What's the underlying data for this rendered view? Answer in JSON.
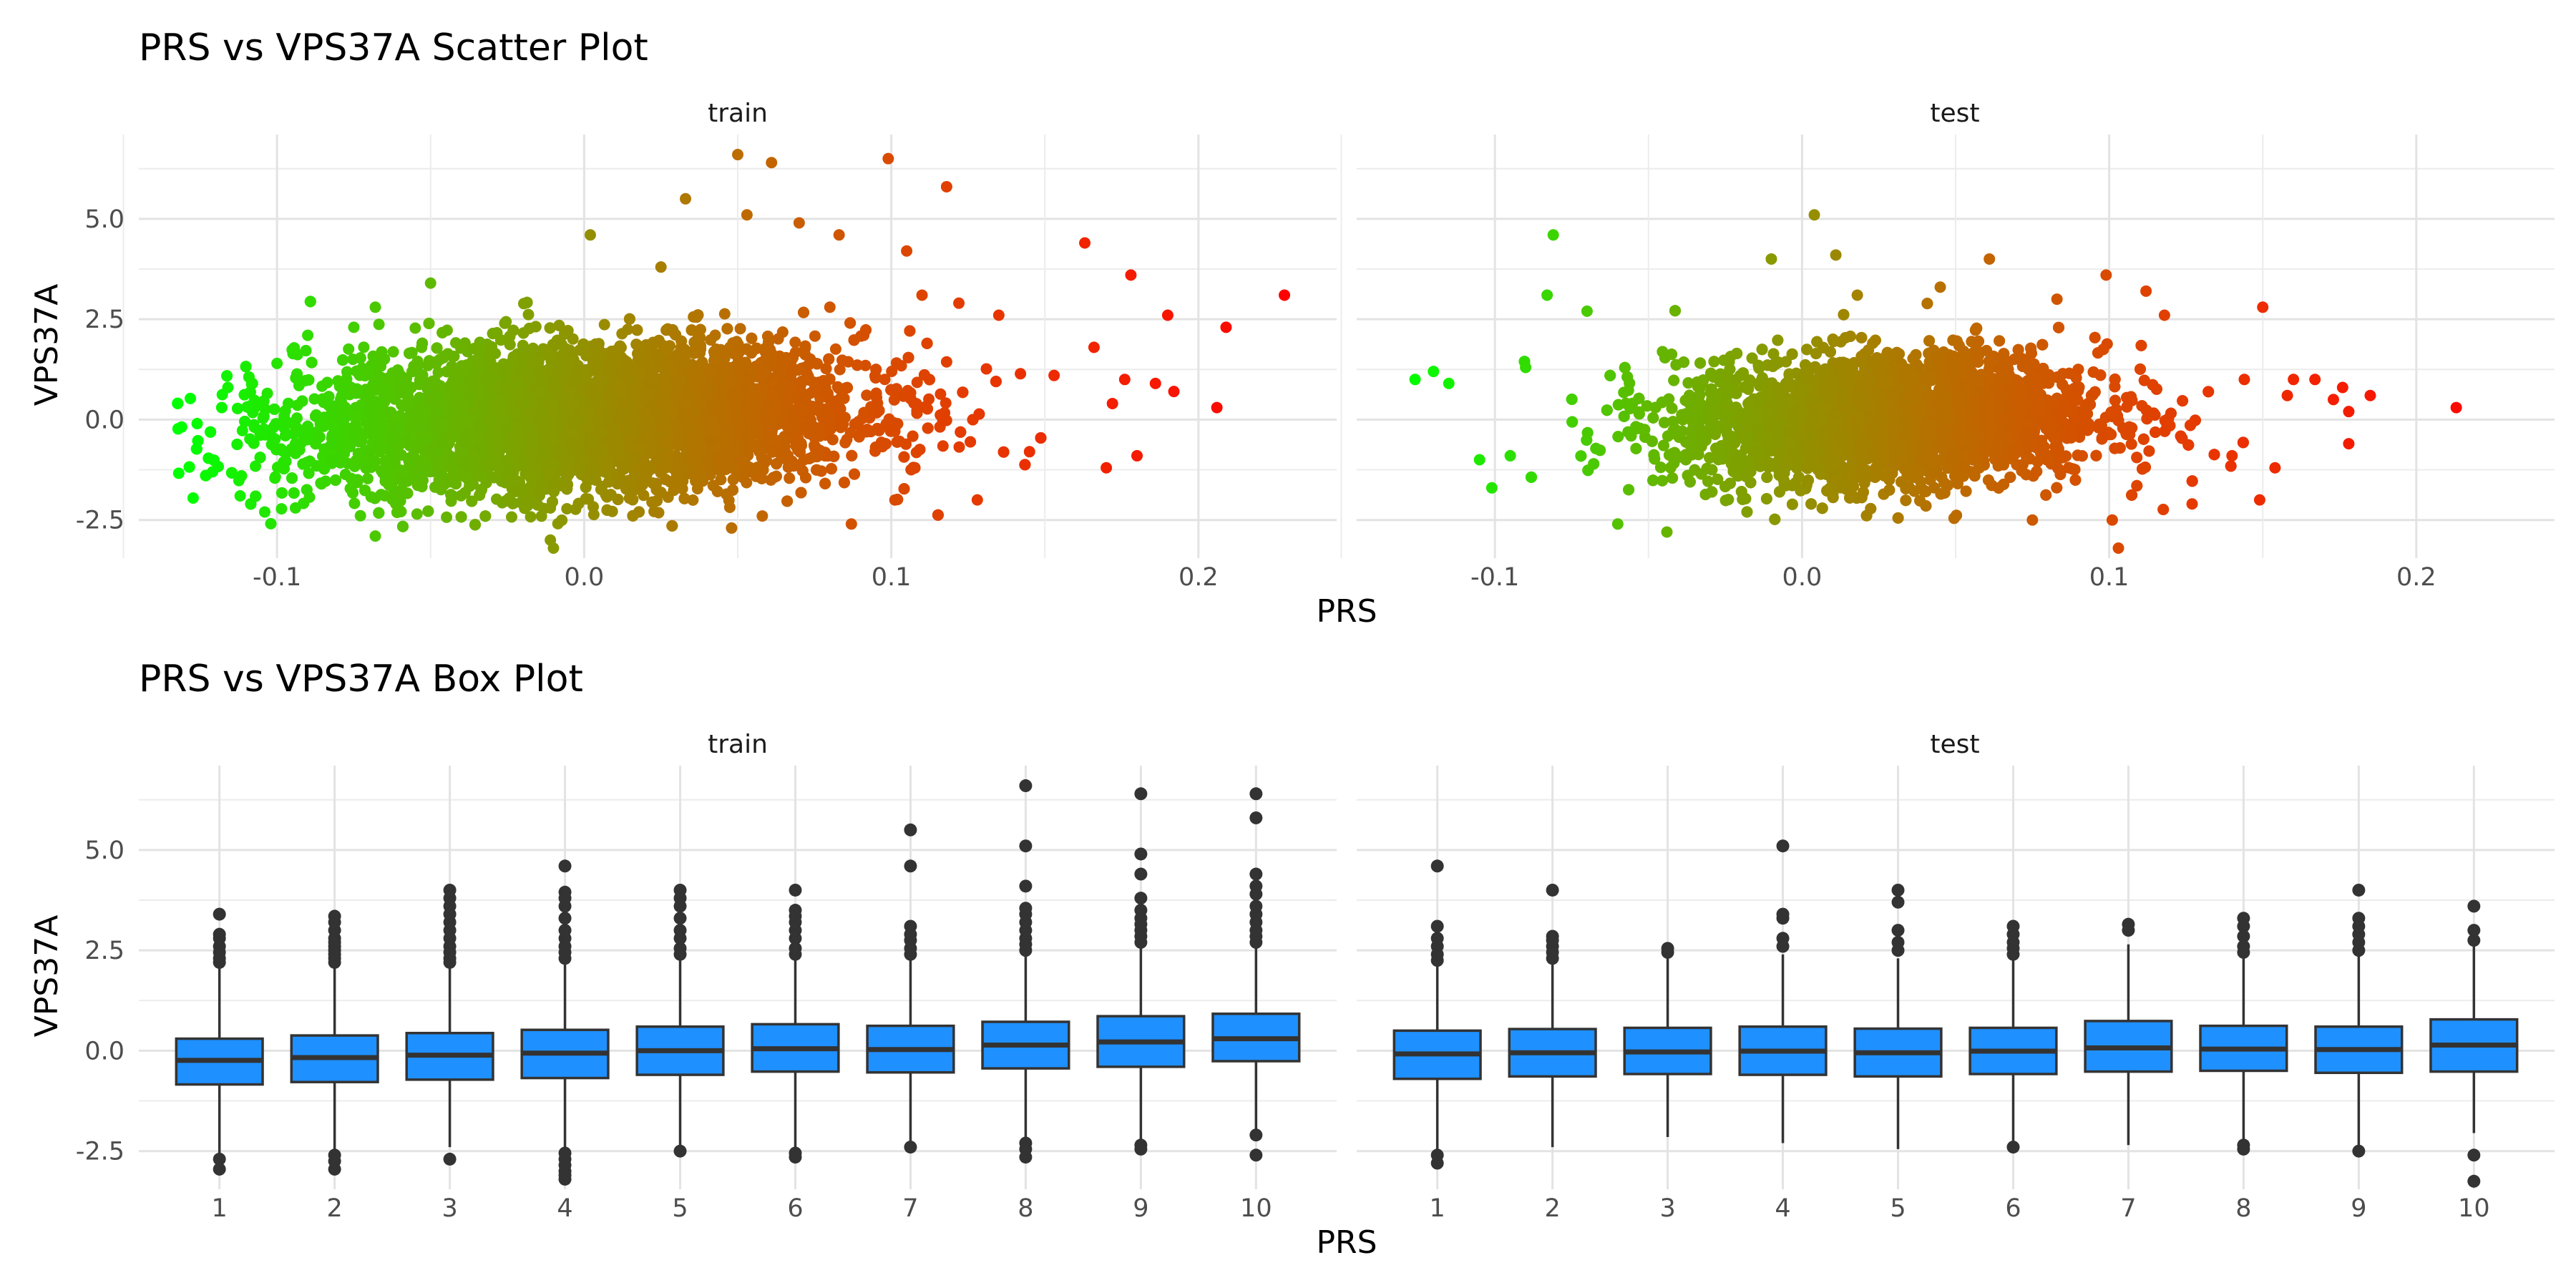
{
  "chart_data": [
    {
      "type": "scatter",
      "title": "PRS vs VPS37A Scatter Plot",
      "xlabel": "PRS",
      "ylabel": "VPS37A",
      "xlim": [
        -0.145,
        0.245
      ],
      "ylim": [
        -3.45,
        7.1
      ],
      "x_ticks": [
        -0.1,
        0.0,
        0.1,
        0.2
      ],
      "x_tick_labels": [
        "-0.1",
        "0.0",
        "0.1",
        "0.2"
      ],
      "y_ticks": [
        -2.5,
        0.0,
        2.5,
        5.0
      ],
      "y_tick_labels": [
        "-2.5",
        "0.0",
        "2.5",
        "5.0"
      ],
      "grid": true,
      "color_scale": {
        "low": "#00ff00",
        "high": "#ff0000",
        "variable": "PRS",
        "range": [
          -0.13,
          0.23
        ]
      },
      "panels": [
        {
          "name": "train",
          "cloud": {
            "x_mean": 0.0,
            "x_sd": 0.045,
            "y_mean": 0.0,
            "y_sd": 0.9,
            "slope": 3.0
          },
          "points": [
            [
              -0.126,
              -0.1
            ],
            [
              -0.121,
              -1.3
            ],
            [
              -0.118,
              0.3
            ],
            [
              -0.116,
              0.8
            ],
            [
              -0.112,
              -1.9
            ],
            [
              -0.108,
              0.9
            ],
            [
              -0.104,
              -2.3
            ],
            [
              -0.1,
              1.4
            ],
            [
              -0.094,
              -2.2
            ],
            [
              -0.09,
              2.1
            ],
            [
              -0.075,
              2.3
            ],
            [
              -0.068,
              2.8
            ],
            [
              -0.068,
              -2.9
            ],
            [
              -0.05,
              3.4
            ],
            [
              -0.011,
              -3.0
            ],
            [
              -0.01,
              -3.2
            ],
            [
              0.002,
              4.6
            ],
            [
              0.025,
              3.8
            ],
            [
              0.033,
              5.5
            ],
            [
              0.048,
              -2.7
            ],
            [
              0.05,
              6.6
            ],
            [
              0.053,
              5.1
            ],
            [
              0.058,
              -2.4
            ],
            [
              0.061,
              6.4
            ],
            [
              0.07,
              4.9
            ],
            [
              0.08,
              2.8
            ],
            [
              0.083,
              4.6
            ],
            [
              0.087,
              -2.6
            ],
            [
              0.099,
              6.5
            ],
            [
              0.105,
              4.2
            ],
            [
              0.11,
              3.1
            ],
            [
              0.118,
              5.8
            ],
            [
              0.122,
              2.9
            ],
            [
              0.128,
              -2.0
            ],
            [
              0.135,
              2.6
            ],
            [
              0.145,
              -0.8
            ],
            [
              0.153,
              1.1
            ],
            [
              0.163,
              4.4
            ],
            [
              0.166,
              1.8
            ],
            [
              0.17,
              -1.2
            ],
            [
              0.172,
              0.4
            ],
            [
              0.176,
              1.0
            ],
            [
              0.178,
              3.6
            ],
            [
              0.18,
              -0.9
            ],
            [
              0.186,
              0.9
            ],
            [
              0.19,
              2.6
            ],
            [
              0.192,
              0.7
            ],
            [
              0.206,
              0.3
            ],
            [
              0.209,
              2.3
            ],
            [
              0.228,
              3.1
            ]
          ]
        },
        {
          "name": "test",
          "cloud": {
            "x_mean": 0.028,
            "x_sd": 0.035,
            "y_mean": 0.0,
            "y_sd": 0.8,
            "slope": 2.0
          },
          "points": [
            [
              -0.126,
              1.0
            ],
            [
              -0.12,
              1.2
            ],
            [
              -0.115,
              0.9
            ],
            [
              -0.105,
              -1.0
            ],
            [
              -0.101,
              -1.7
            ],
            [
              -0.095,
              -0.9
            ],
            [
              -0.09,
              1.3
            ],
            [
              -0.081,
              4.6
            ],
            [
              -0.083,
              3.1
            ],
            [
              -0.07,
              2.7
            ],
            [
              -0.06,
              -2.6
            ],
            [
              -0.044,
              -2.8
            ],
            [
              -0.01,
              4.0
            ],
            [
              0.004,
              5.1
            ],
            [
              0.011,
              4.1
            ],
            [
              0.018,
              3.1
            ],
            [
              0.045,
              3.3
            ],
            [
              0.061,
              4.0
            ],
            [
              0.075,
              -2.5
            ],
            [
              0.083,
              3.0
            ],
            [
              0.099,
              3.6
            ],
            [
              0.101,
              -2.5
            ],
            [
              0.103,
              -3.2
            ],
            [
              0.112,
              3.2
            ],
            [
              0.118,
              2.6
            ],
            [
              0.127,
              -2.1
            ],
            [
              0.14,
              -0.9
            ],
            [
              0.144,
              1.0
            ],
            [
              0.149,
              -2.0
            ],
            [
              0.15,
              2.8
            ],
            [
              0.154,
              -1.2
            ],
            [
              0.158,
              0.6
            ],
            [
              0.16,
              1.0
            ],
            [
              0.167,
              1.0
            ],
            [
              0.173,
              0.5
            ],
            [
              0.176,
              0.8
            ],
            [
              0.178,
              -0.6
            ],
            [
              0.178,
              0.2
            ],
            [
              0.185,
              0.6
            ],
            [
              0.213,
              0.3
            ]
          ]
        }
      ]
    },
    {
      "type": "box",
      "title": "PRS vs VPS37A Box Plot",
      "xlabel": "PRS",
      "ylabel": "VPS37A",
      "ylim": [
        -3.45,
        7.1
      ],
      "y_ticks": [
        -2.5,
        0.0,
        2.5,
        5.0
      ],
      "y_tick_labels": [
        "-2.5",
        "0.0",
        "2.5",
        "5.0"
      ],
      "categories": [
        "1",
        "2",
        "3",
        "4",
        "5",
        "6",
        "7",
        "8",
        "9",
        "10"
      ],
      "grid": true,
      "fill_color": "#1f90ff",
      "panels": [
        {
          "name": "train",
          "boxes": [
            {
              "category": "1",
              "q1": -0.84,
              "median": -0.24,
              "q3": 0.3,
              "whisker_low": -2.55,
              "whisker_high": 2.05,
              "outliers": [
                -2.7,
                -2.95,
                2.2,
                2.3,
                2.45,
                2.6,
                2.8,
                2.9,
                3.4
              ]
            },
            {
              "category": "2",
              "q1": -0.78,
              "median": -0.17,
              "q3": 0.38,
              "whisker_low": -2.5,
              "whisker_high": 2.1,
              "outliers": [
                -2.6,
                -2.75,
                -2.95,
                2.2,
                2.3,
                2.4,
                2.5,
                2.6,
                2.7,
                2.8,
                3.0,
                3.2,
                3.35
              ]
            },
            {
              "category": "3",
              "q1": -0.72,
              "median": -0.11,
              "q3": 0.44,
              "whisker_low": -2.4,
              "whisker_high": 2.1,
              "outliers": [
                -2.7,
                2.2,
                2.3,
                2.45,
                2.6,
                2.8,
                3.0,
                3.2,
                3.4,
                3.6,
                3.8,
                4.0
              ]
            },
            {
              "category": "4",
              "q1": -0.68,
              "median": -0.06,
              "q3": 0.52,
              "whisker_low": -2.4,
              "whisker_high": 2.2,
              "outliers": [
                -2.55,
                -2.7,
                -2.85,
                -3.0,
                -3.1,
                -3.2,
                2.3,
                2.45,
                2.6,
                2.8,
                3.0,
                3.3,
                3.6,
                3.8,
                3.95,
                4.6
              ]
            },
            {
              "category": "5",
              "q1": -0.6,
              "median": 0.0,
              "q3": 0.6,
              "whisker_low": -2.4,
              "whisker_high": 2.3,
              "outliers": [
                -2.5,
                2.4,
                2.55,
                2.8,
                3.0,
                3.3,
                3.6,
                3.8,
                4.0
              ]
            },
            {
              "category": "6",
              "q1": -0.52,
              "median": 0.05,
              "q3": 0.66,
              "whisker_low": -2.4,
              "whisker_high": 2.3,
              "outliers": [
                -2.55,
                -2.65,
                2.4,
                2.55,
                2.8,
                3.0,
                3.2,
                3.35,
                3.5,
                4.0
              ]
            },
            {
              "category": "7",
              "q1": -0.54,
              "median": 0.03,
              "q3": 0.62,
              "whisker_low": -2.3,
              "whisker_high": 2.3,
              "outliers": [
                -2.4,
                2.4,
                2.55,
                2.75,
                2.9,
                3.1,
                4.6,
                5.5
              ]
            },
            {
              "category": "8",
              "q1": -0.44,
              "median": 0.14,
              "q3": 0.72,
              "whisker_low": -2.2,
              "whisker_high": 2.4,
              "outliers": [
                -2.3,
                -2.45,
                -2.65,
                2.5,
                2.65,
                2.8,
                3.0,
                3.2,
                3.4,
                3.55,
                4.1,
                5.1,
                6.6
              ]
            },
            {
              "category": "9",
              "q1": -0.4,
              "median": 0.22,
              "q3": 0.86,
              "whisker_low": -2.25,
              "whisker_high": 2.6,
              "outliers": [
                -2.35,
                -2.45,
                2.7,
                2.85,
                3.0,
                3.15,
                3.3,
                3.5,
                3.8,
                4.4,
                4.9,
                6.4
              ]
            },
            {
              "category": "10",
              "q1": -0.26,
              "median": 0.3,
              "q3": 0.92,
              "whisker_low": -2.0,
              "whisker_high": 2.6,
              "outliers": [
                -2.1,
                -2.6,
                2.7,
                2.85,
                3.0,
                3.2,
                3.4,
                3.6,
                3.9,
                4.1,
                4.4,
                5.8,
                6.4
              ]
            }
          ]
        },
        {
          "name": "test",
          "boxes": [
            {
              "category": "1",
              "q1": -0.7,
              "median": -0.08,
              "q3": 0.5,
              "whisker_low": -2.45,
              "whisker_high": 2.1,
              "outliers": [
                -2.6,
                -2.8,
                2.25,
                2.4,
                2.6,
                2.8,
                3.1,
                4.6
              ]
            },
            {
              "category": "2",
              "q1": -0.64,
              "median": -0.05,
              "q3": 0.54,
              "whisker_low": -2.4,
              "whisker_high": 2.2,
              "outliers": [
                2.3,
                2.45,
                2.6,
                2.75,
                2.85,
                4.0
              ]
            },
            {
              "category": "3",
              "q1": -0.58,
              "median": -0.03,
              "q3": 0.57,
              "whisker_low": -2.15,
              "whisker_high": 2.35,
              "outliers": [
                2.45,
                2.55
              ]
            },
            {
              "category": "4",
              "q1": -0.6,
              "median": -0.01,
              "q3": 0.6,
              "whisker_low": -2.3,
              "whisker_high": 2.4,
              "outliers": [
                2.6,
                2.8,
                3.3,
                3.4,
                5.1
              ]
            },
            {
              "category": "5",
              "q1": -0.64,
              "median": -0.05,
              "q3": 0.55,
              "whisker_low": -2.45,
              "whisker_high": 2.3,
              "outliers": [
                2.5,
                2.7,
                3.0,
                3.7,
                4.0
              ]
            },
            {
              "category": "6",
              "q1": -0.58,
              "median": -0.01,
              "q3": 0.57,
              "whisker_low": -2.3,
              "whisker_high": 2.25,
              "outliers": [
                -2.4,
                2.4,
                2.55,
                2.7,
                2.9,
                3.1
              ]
            },
            {
              "category": "7",
              "q1": -0.52,
              "median": 0.07,
              "q3": 0.74,
              "whisker_low": -2.35,
              "whisker_high": 2.65,
              "outliers": [
                3.0,
                3.15
              ]
            },
            {
              "category": "8",
              "q1": -0.5,
              "median": 0.04,
              "q3": 0.62,
              "whisker_low": -2.25,
              "whisker_high": 2.3,
              "outliers": [
                -2.35,
                -2.45,
                2.45,
                2.6,
                2.85,
                3.1,
                3.3
              ]
            },
            {
              "category": "9",
              "q1": -0.55,
              "median": 0.03,
              "q3": 0.6,
              "whisker_low": -2.4,
              "whisker_high": 2.35,
              "outliers": [
                -2.5,
                2.5,
                2.7,
                2.9,
                3.1,
                3.3,
                4.0
              ]
            },
            {
              "category": "10",
              "q1": -0.52,
              "median": 0.14,
              "q3": 0.78,
              "whisker_low": -2.05,
              "whisker_high": 2.6,
              "outliers": [
                -2.6,
                -3.25,
                2.75,
                3.0,
                3.6
              ]
            }
          ]
        }
      ]
    }
  ]
}
